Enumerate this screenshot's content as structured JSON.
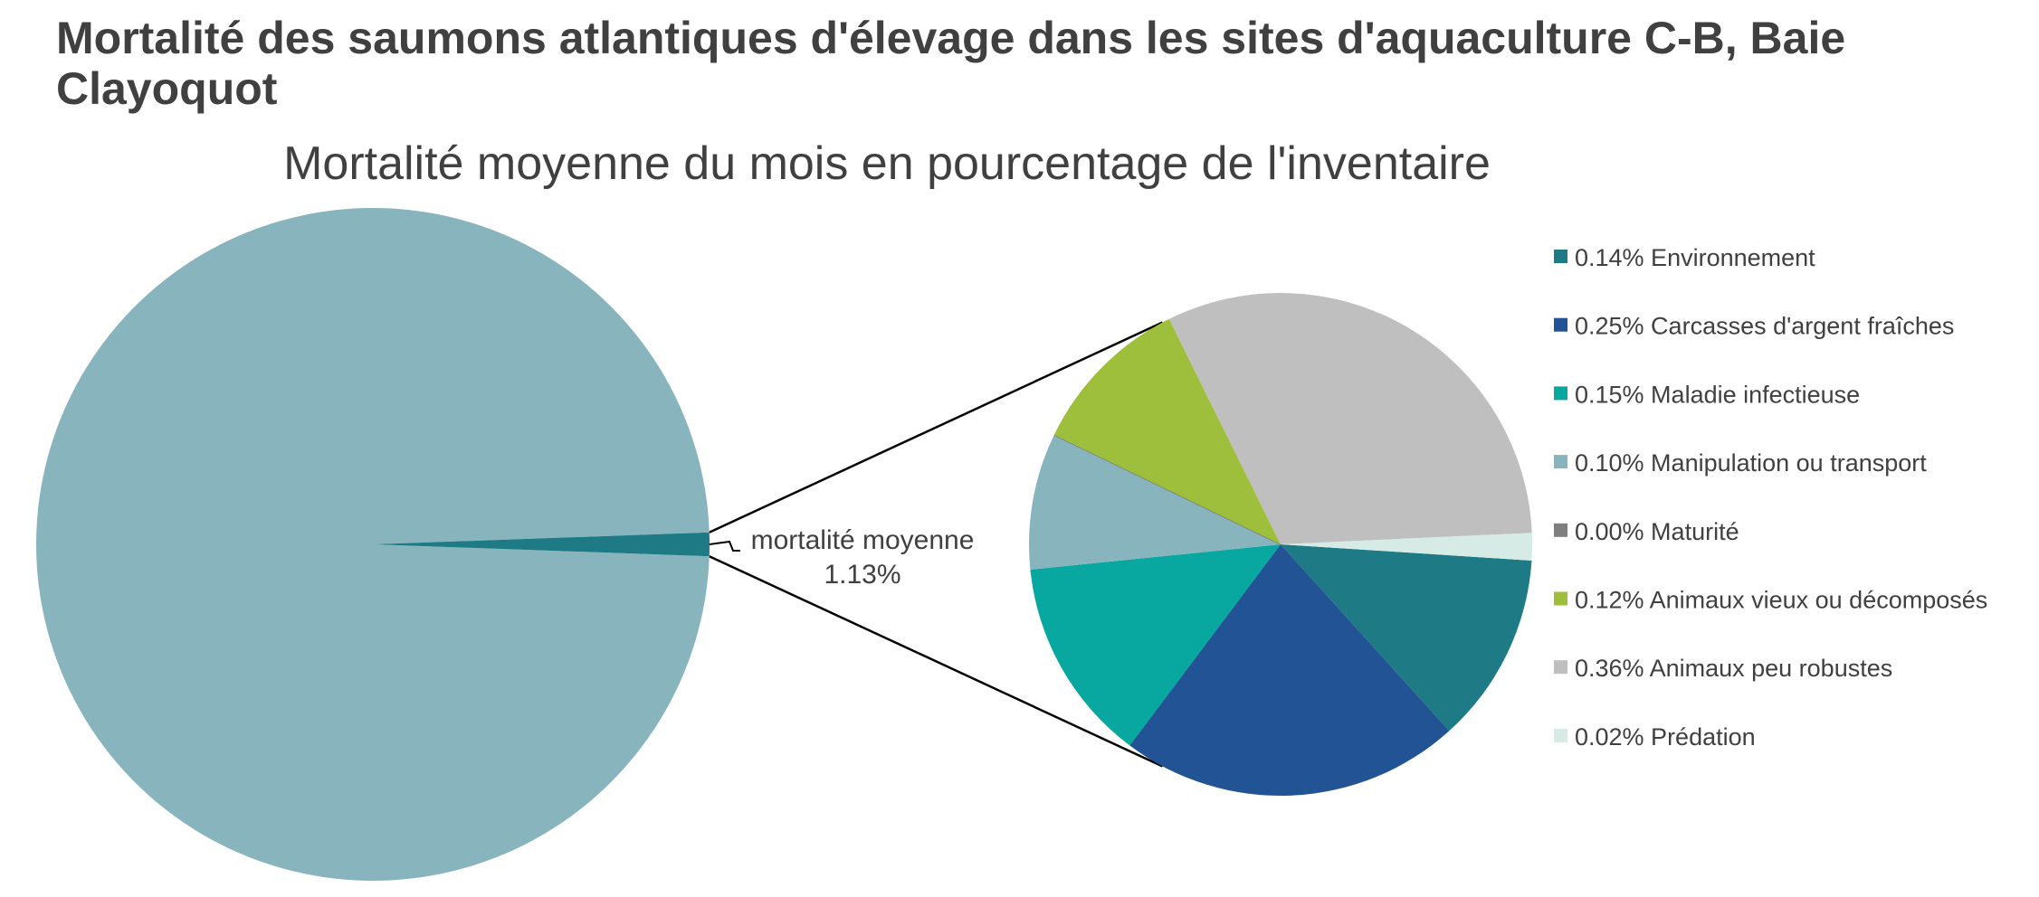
{
  "header": {
    "title": "Mortalité des saumons atlantiques d'élevage dans les sites d'aquaculture C-B, Baie Clayoquot"
  },
  "chart_data": {
    "type": "pie",
    "subtype": "pie-of-pie",
    "title": "Mortalité moyenne du mois en pourcentage de l'inventaire",
    "legend_position": "right",
    "main_pie": {
      "slices": [
        {
          "value": 98.87,
          "color": "#88b4bd"
        },
        {
          "value": 1.13,
          "color": "#1e7b86"
        }
      ]
    },
    "callout": {
      "label": "mortalité moyenne",
      "value_label": "1.13%"
    },
    "detail_pie": {
      "slices": [
        {
          "value": 0.14,
          "legend": "0.14% Environnement",
          "color": "#1e7b86"
        },
        {
          "value": 0.25,
          "legend": "0.25% Carcasses d'argent fraîches",
          "color": "#225394"
        },
        {
          "value": 0.15,
          "legend": "0.15% Maladie infectieuse",
          "color": "#08a79f"
        },
        {
          "value": 0.1,
          "legend": "0.10% Manipulation ou transport",
          "color": "#88b4bd"
        },
        {
          "value": 0.0,
          "legend": "0.00% Maturité",
          "color": "#7f7f7f"
        },
        {
          "value": 0.12,
          "legend": "0.12% Animaux vieux ou décomposés",
          "color": "#9ebf3b"
        },
        {
          "value": 0.36,
          "legend": "0.36% Animaux peu robustes",
          "color": "#bfbfbf"
        },
        {
          "value": 0.02,
          "legend": "0.02% Prédation",
          "color": "#d6ebe6"
        }
      ]
    }
  }
}
